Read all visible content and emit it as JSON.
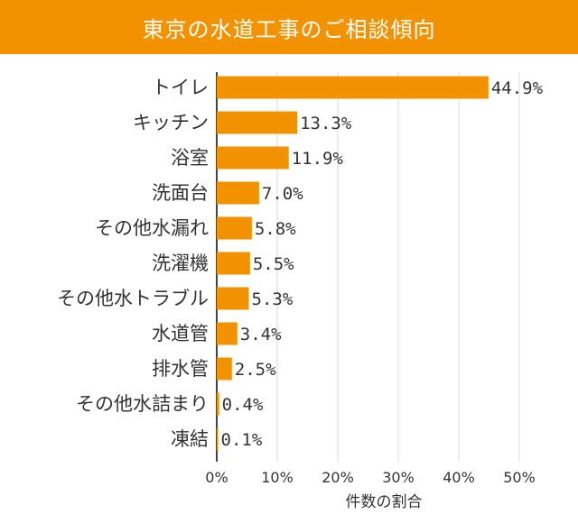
{
  "chart_data": {
    "type": "bar",
    "orientation": "horizontal",
    "title": "東京の水道工事のご相談傾向",
    "xlabel": "件数の割合",
    "ylabel": "",
    "xlim": [
      0,
      50
    ],
    "xticks": [
      "0%",
      "10%",
      "20%",
      "30%",
      "40%",
      "50%"
    ],
    "grid": true,
    "categories": [
      "トイレ",
      "キッチン",
      "浴室",
      "洗面台",
      "その他水漏れ",
      "洗濯機",
      "その他水トラブル",
      "水道管",
      "排水管",
      "その他水詰まり",
      "凍結"
    ],
    "values": [
      44.9,
      13.3,
      11.9,
      7.0,
      5.8,
      5.5,
      5.3,
      3.4,
      2.5,
      0.4,
      0.1
    ],
    "value_labels": [
      "44.9%",
      "13.3%",
      "11.9%",
      "7.0%",
      "5.8%",
      "5.5%",
      "5.3%",
      "3.4%",
      "2.5%",
      "0.4%",
      "0.1%"
    ]
  },
  "colors": {
    "accent": "#f39200",
    "bar": "#f39200",
    "text": "#333333",
    "grid": "#d9d9d9",
    "axis": "#444444"
  }
}
